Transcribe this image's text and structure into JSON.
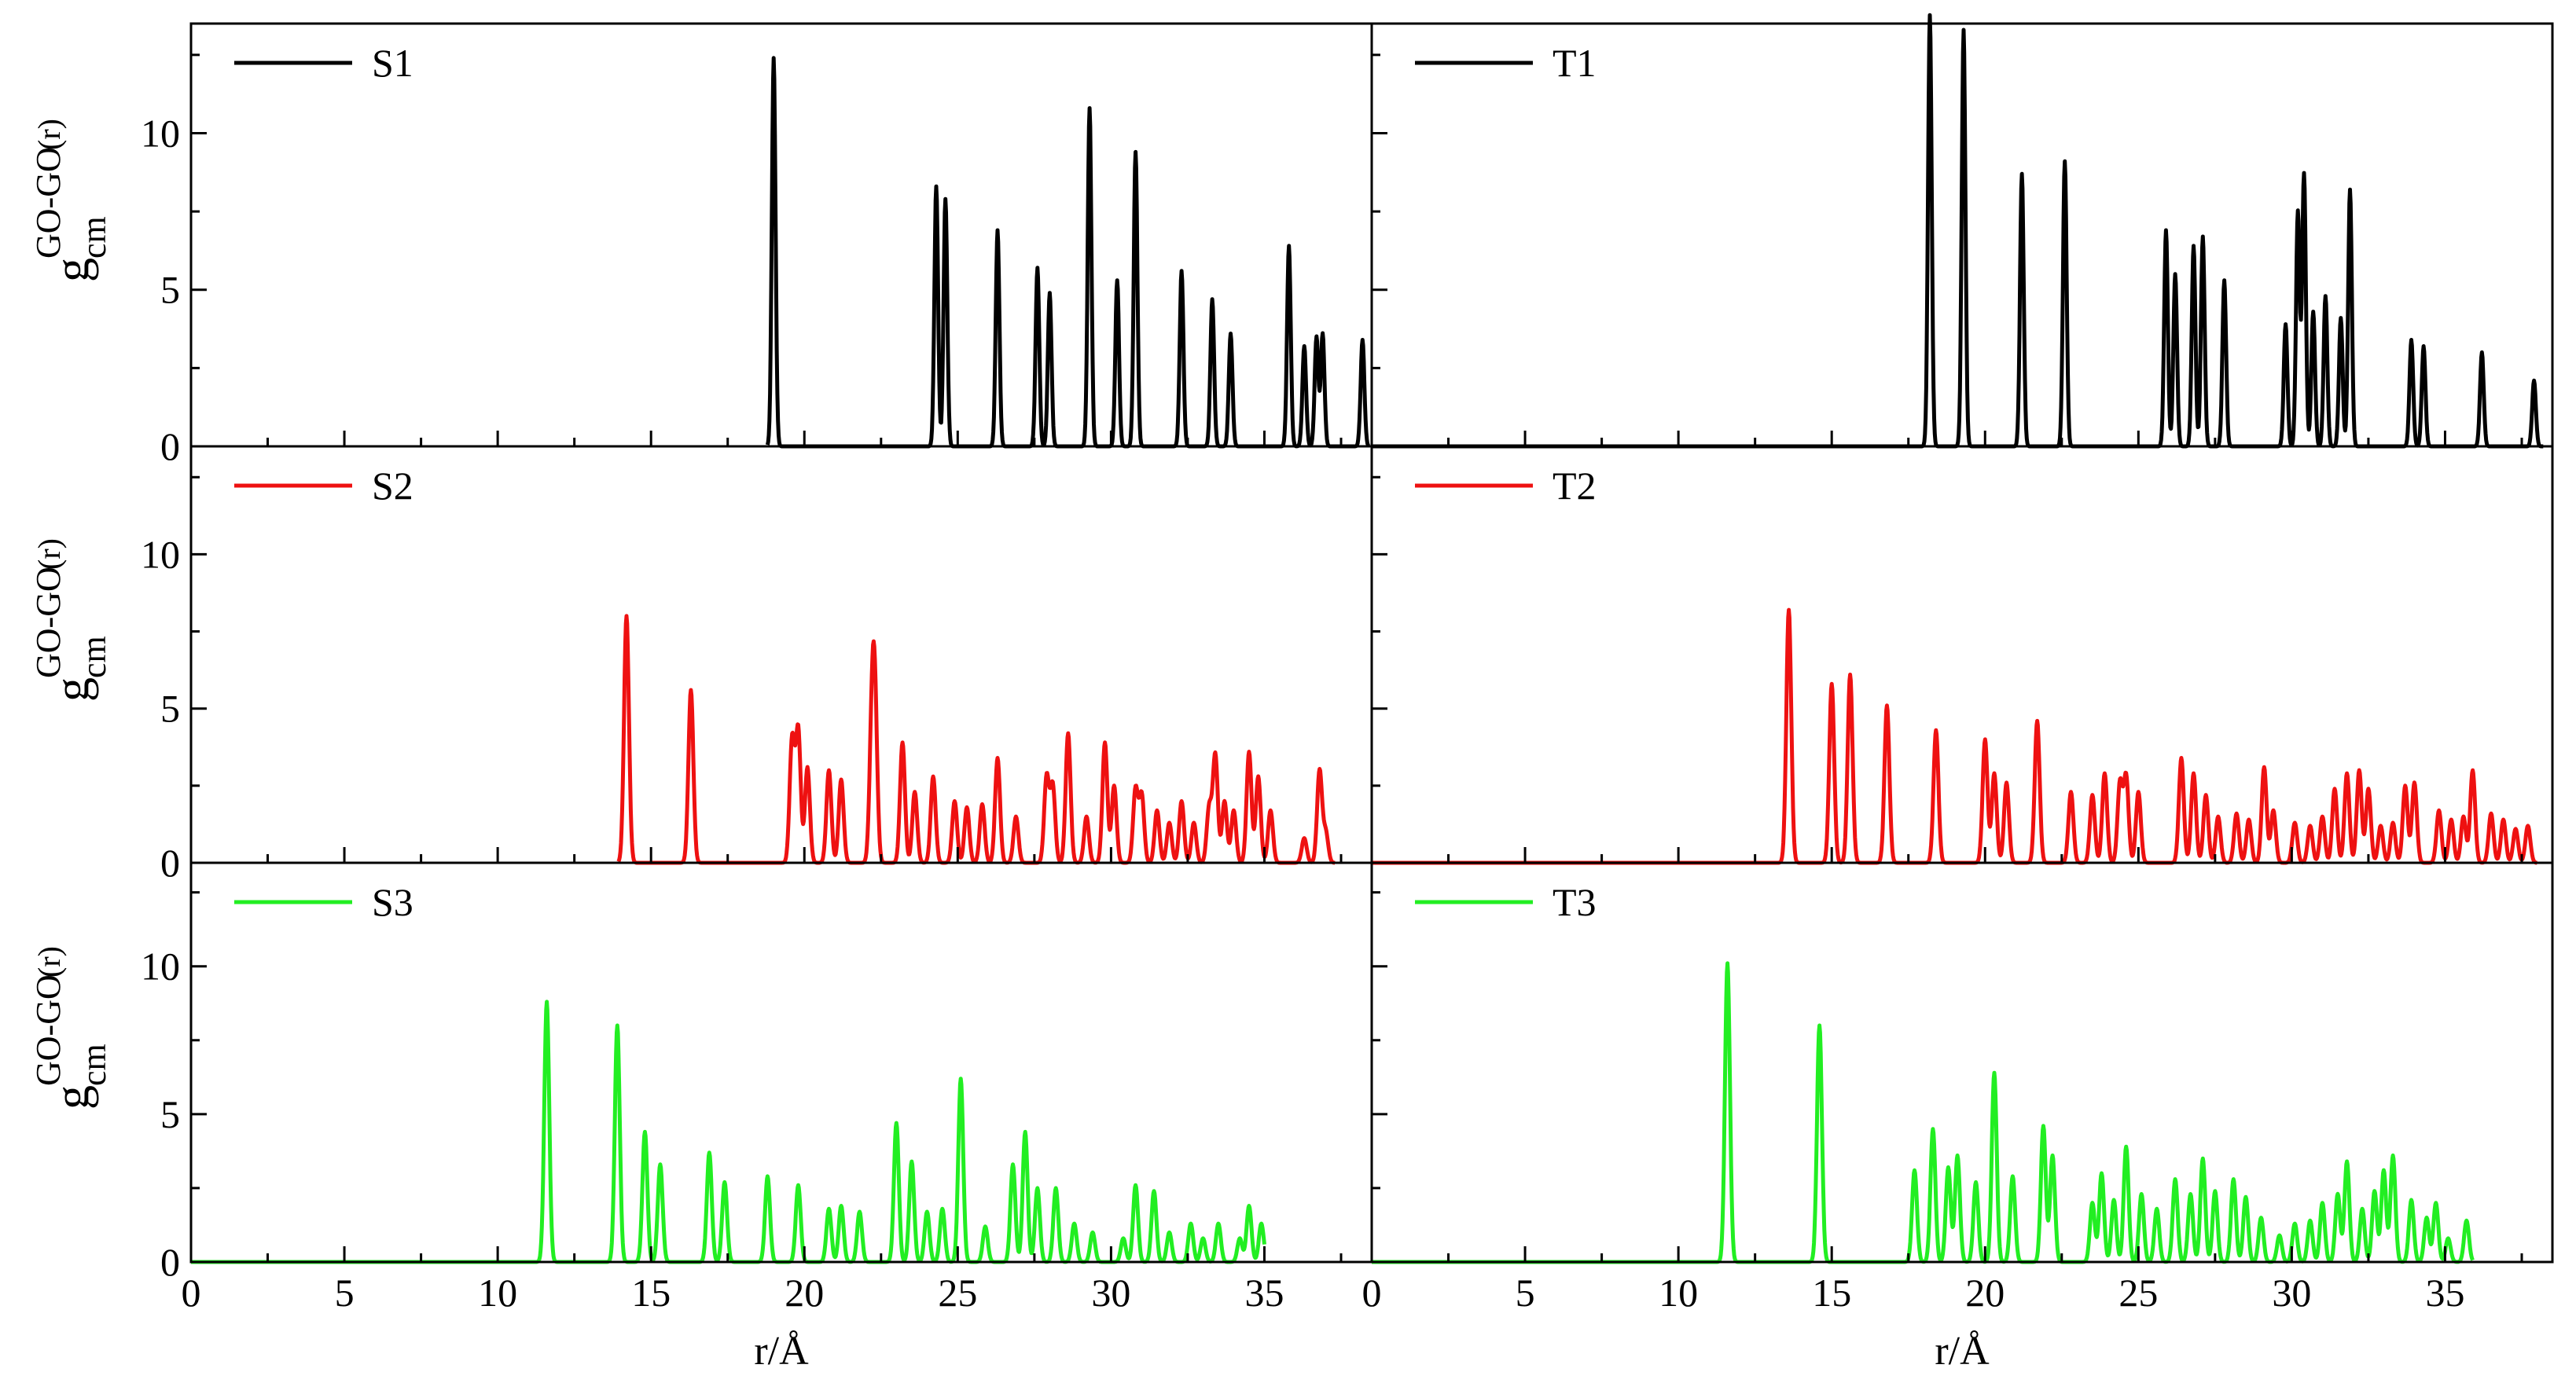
{
  "figure": {
    "y_axis_label": {
      "main": "g",
      "superscript": "GO-GO",
      "subscript": "cm",
      "argument": "(r)"
    }
  },
  "colors": {
    "S1": "#000000",
    "T1": "#000000",
    "S2": "#ee1111",
    "T2": "#ee1111",
    "S3": "#22ee22",
    "T3": "#22ee22"
  },
  "chart_data": [
    {
      "type": "line",
      "legend": "S1",
      "color": "#000000",
      "xlim": [
        0,
        38.5
      ],
      "ylim": [
        0,
        13.5
      ],
      "xticks": [
        0,
        5,
        10,
        15,
        20,
        25,
        30,
        35
      ],
      "yticks": [
        0,
        5,
        10
      ],
      "show_xlabels": false,
      "xlabel": "",
      "baseline_start": 19.2,
      "trace_end": 38.4,
      "width": 0.06,
      "peaks": [
        [
          19.0,
          12.4
        ],
        [
          24.3,
          8.3
        ],
        [
          24.6,
          7.9
        ],
        [
          26.3,
          6.9
        ],
        [
          27.6,
          5.7
        ],
        [
          28.0,
          4.9
        ],
        [
          29.3,
          10.8
        ],
        [
          30.2,
          5.3
        ],
        [
          30.8,
          9.4
        ],
        [
          32.3,
          5.6
        ],
        [
          33.3,
          4.7
        ],
        [
          33.9,
          3.6
        ],
        [
          35.8,
          6.4
        ],
        [
          36.3,
          3.2
        ],
        [
          36.7,
          3.5
        ],
        [
          36.9,
          3.6
        ],
        [
          38.2,
          3.4
        ]
      ]
    },
    {
      "type": "line",
      "legend": "T1",
      "color": "#000000",
      "xlim": [
        0,
        38.5
      ],
      "ylim": [
        0,
        13.5
      ],
      "xticks": [
        0,
        5,
        10,
        15,
        20,
        25,
        30,
        35
      ],
      "yticks": [
        0,
        5,
        10
      ],
      "show_xlabels": false,
      "xlabel": "",
      "baseline_start": 0,
      "trace_end": 38.2,
      "width": 0.06,
      "peaks": [
        [
          18.2,
          13.8
        ],
        [
          19.3,
          13.3
        ],
        [
          21.2,
          8.7
        ],
        [
          22.6,
          9.1
        ],
        [
          25.9,
          6.9
        ],
        [
          26.2,
          5.5
        ],
        [
          26.8,
          6.4
        ],
        [
          27.1,
          6.7
        ],
        [
          27.8,
          5.3
        ],
        [
          29.8,
          3.9
        ],
        [
          30.2,
          7.5
        ],
        [
          30.4,
          8.7
        ],
        [
          30.7,
          4.3
        ],
        [
          31.1,
          4.8
        ],
        [
          31.6,
          4.1
        ],
        [
          31.9,
          8.2
        ],
        [
          33.9,
          3.4
        ],
        [
          34.3,
          3.2
        ],
        [
          36.2,
          3.0
        ],
        [
          37.9,
          2.1
        ]
      ]
    },
    {
      "type": "line",
      "legend": "S2",
      "color": "#ee1111",
      "xlim": [
        0,
        38.5
      ],
      "ylim": [
        0,
        13.5
      ],
      "xticks": [
        0,
        5,
        10,
        15,
        20,
        25,
        30,
        35
      ],
      "yticks": [
        0,
        5,
        10
      ],
      "show_xlabels": false,
      "xlabel": "",
      "baseline_start": 14.3,
      "trace_end": 37.3,
      "width": 0.08,
      "peaks": [
        [
          14.2,
          8.0
        ],
        [
          16.3,
          5.6
        ],
        [
          19.6,
          4.0
        ],
        [
          19.8,
          4.3
        ],
        [
          20.1,
          3.1
        ],
        [
          20.8,
          3.0
        ],
        [
          21.2,
          2.7
        ],
        [
          22.2,
          3.9
        ],
        [
          22.3,
          4.8
        ],
        [
          23.2,
          3.9
        ],
        [
          23.6,
          2.3
        ],
        [
          24.2,
          2.8
        ],
        [
          24.9,
          2.0
        ],
        [
          25.3,
          1.8
        ],
        [
          25.8,
          1.9
        ],
        [
          26.3,
          3.4
        ],
        [
          26.9,
          1.5
        ],
        [
          27.9,
          2.8
        ],
        [
          28.1,
          2.5
        ],
        [
          28.6,
          4.2
        ],
        [
          29.2,
          1.5
        ],
        [
          29.8,
          3.9
        ],
        [
          30.1,
          2.5
        ],
        [
          30.8,
          2.4
        ],
        [
          31.0,
          2.2
        ],
        [
          31.5,
          1.7
        ],
        [
          31.9,
          1.3
        ],
        [
          32.3,
          2.0
        ],
        [
          32.7,
          1.3
        ],
        [
          33.2,
          1.8
        ],
        [
          33.4,
          3.5
        ],
        [
          33.7,
          2.0
        ],
        [
          34.0,
          1.7
        ],
        [
          34.5,
          3.6
        ],
        [
          34.8,
          2.8
        ],
        [
          35.2,
          1.7
        ],
        [
          36.3,
          0.8
        ],
        [
          36.8,
          3.0
        ],
        [
          37.0,
          1.0
        ]
      ]
    },
    {
      "type": "line",
      "legend": "T2",
      "color": "#ee1111",
      "xlim": [
        0,
        38.5
      ],
      "ylim": [
        0,
        13.5
      ],
      "xticks": [
        0,
        5,
        10,
        15,
        20,
        25,
        30,
        35
      ],
      "yticks": [
        0,
        5,
        10
      ],
      "show_xlabels": false,
      "xlabel": "",
      "baseline_start": 0,
      "trace_end": 38.0,
      "width": 0.08,
      "peaks": [
        [
          13.6,
          8.2
        ],
        [
          15.0,
          5.8
        ],
        [
          15.6,
          6.1
        ],
        [
          16.8,
          5.1
        ],
        [
          18.4,
          4.3
        ],
        [
          20.0,
          4.0
        ],
        [
          20.3,
          2.9
        ],
        [
          20.7,
          2.6
        ],
        [
          21.7,
          4.6
        ],
        [
          22.8,
          2.3
        ],
        [
          23.5,
          2.2
        ],
        [
          23.9,
          2.9
        ],
        [
          24.4,
          2.6
        ],
        [
          24.6,
          2.8
        ],
        [
          25.0,
          2.3
        ],
        [
          26.4,
          3.4
        ],
        [
          26.8,
          2.9
        ],
        [
          27.2,
          2.2
        ],
        [
          27.6,
          1.5
        ],
        [
          28.2,
          1.6
        ],
        [
          28.6,
          1.4
        ],
        [
          29.1,
          3.1
        ],
        [
          29.4,
          1.7
        ],
        [
          30.1,
          1.3
        ],
        [
          30.6,
          1.2
        ],
        [
          31.0,
          1.5
        ],
        [
          31.4,
          2.4
        ],
        [
          31.8,
          2.9
        ],
        [
          32.2,
          3.0
        ],
        [
          32.5,
          2.4
        ],
        [
          32.9,
          1.2
        ],
        [
          33.3,
          1.3
        ],
        [
          33.7,
          2.5
        ],
        [
          34.0,
          2.6
        ],
        [
          34.8,
          1.7
        ],
        [
          35.2,
          1.4
        ],
        [
          35.6,
          1.5
        ],
        [
          35.9,
          3.0
        ],
        [
          36.5,
          1.6
        ],
        [
          36.9,
          1.4
        ],
        [
          37.3,
          1.1
        ],
        [
          37.7,
          1.2
        ]
      ]
    },
    {
      "type": "line",
      "legend": "S3",
      "color": "#22ee22",
      "xlim": [
        0,
        38.5
      ],
      "ylim": [
        0,
        13.5
      ],
      "xticks": [
        0,
        5,
        10,
        15,
        20,
        25,
        30,
        35
      ],
      "yticks": [
        0,
        5,
        10
      ],
      "show_xlabels": true,
      "xlabel": "r/Å",
      "baseline_start": 0,
      "trace_end": 35.0,
      "width": 0.08,
      "peaks": [
        [
          11.6,
          8.8
        ],
        [
          13.9,
          8.0
        ],
        [
          14.8,
          4.4
        ],
        [
          15.3,
          3.3
        ],
        [
          16.9,
          3.7
        ],
        [
          17.4,
          2.7
        ],
        [
          18.8,
          2.9
        ],
        [
          19.8,
          2.6
        ],
        [
          20.8,
          1.8
        ],
        [
          21.2,
          1.9
        ],
        [
          21.8,
          1.7
        ],
        [
          23.0,
          4.7
        ],
        [
          23.5,
          3.4
        ],
        [
          24.0,
          1.7
        ],
        [
          24.5,
          1.8
        ],
        [
          25.1,
          6.2
        ],
        [
          25.9,
          1.2
        ],
        [
          26.8,
          3.3
        ],
        [
          27.2,
          4.4
        ],
        [
          27.6,
          2.5
        ],
        [
          28.2,
          2.5
        ],
        [
          28.8,
          1.3
        ],
        [
          29.4,
          1.0
        ],
        [
          30.4,
          0.8
        ],
        [
          30.8,
          2.6
        ],
        [
          31.4,
          2.4
        ],
        [
          31.9,
          1.0
        ],
        [
          32.6,
          1.3
        ],
        [
          33.0,
          0.8
        ],
        [
          33.5,
          1.3
        ],
        [
          34.2,
          0.8
        ],
        [
          34.5,
          1.9
        ],
        [
          34.9,
          1.3
        ]
      ]
    },
    {
      "type": "line",
      "legend": "T3",
      "color": "#22ee22",
      "xlim": [
        0,
        38.5
      ],
      "ylim": [
        0,
        13.5
      ],
      "xticks": [
        0,
        5,
        10,
        15,
        20,
        25,
        30,
        35
      ],
      "yticks": [
        0,
        5,
        10
      ],
      "show_xlabels": true,
      "xlabel": "r/Å",
      "baseline_start": 0,
      "trace_end": 35.9,
      "width": 0.08,
      "peaks": [
        [
          11.6,
          10.1
        ],
        [
          14.6,
          8.0
        ],
        [
          17.7,
          3.1
        ],
        [
          18.3,
          4.5
        ],
        [
          18.8,
          3.2
        ],
        [
          19.1,
          3.6
        ],
        [
          19.7,
          2.7
        ],
        [
          20.3,
          6.4
        ],
        [
          20.9,
          2.9
        ],
        [
          21.9,
          4.6
        ],
        [
          22.2,
          3.6
        ],
        [
          23.5,
          2.0
        ],
        [
          23.8,
          3.0
        ],
        [
          24.2,
          2.1
        ],
        [
          24.6,
          3.9
        ],
        [
          25.1,
          2.3
        ],
        [
          25.6,
          1.8
        ],
        [
          26.2,
          2.8
        ],
        [
          26.7,
          2.3
        ],
        [
          27.1,
          3.5
        ],
        [
          27.5,
          2.4
        ],
        [
          28.1,
          2.8
        ],
        [
          28.5,
          2.2
        ],
        [
          29.0,
          1.5
        ],
        [
          29.6,
          0.9
        ],
        [
          30.1,
          1.3
        ],
        [
          30.6,
          1.4
        ],
        [
          31.0,
          2.0
        ],
        [
          31.5,
          2.3
        ],
        [
          31.8,
          3.4
        ],
        [
          32.3,
          1.8
        ],
        [
          32.7,
          2.4
        ],
        [
          33.0,
          3.1
        ],
        [
          33.3,
          3.6
        ],
        [
          33.9,
          2.1
        ],
        [
          34.4,
          1.5
        ],
        [
          34.7,
          2.0
        ],
        [
          35.1,
          0.8
        ],
        [
          35.7,
          1.4
        ]
      ]
    }
  ]
}
